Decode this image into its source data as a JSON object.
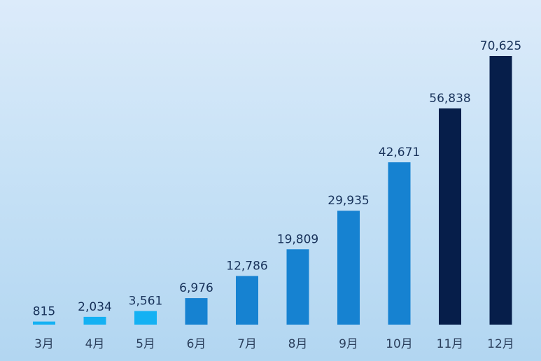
{
  "chart_data": {
    "type": "bar",
    "categories": [
      "3月",
      "4月",
      "5月",
      "6月",
      "7月",
      "8月",
      "9月",
      "10月",
      "11月",
      "12月"
    ],
    "values": [
      815,
      2034,
      3561,
      6976,
      12786,
      19809,
      29935,
      42671,
      56838,
      70625
    ],
    "value_labels": [
      "815",
      "2,034",
      "3,561",
      "6,976",
      "12,786",
      "19,809",
      "29,935",
      "42,671",
      "56,838",
      "70,625"
    ],
    "bar_colors": [
      "#14b1f3",
      "#14b1f3",
      "#14b1f3",
      "#1682d1",
      "#1682d1",
      "#1682d1",
      "#1682d1",
      "#1682d1",
      "#061e4a",
      "#061e4a"
    ],
    "ylim": [
      0,
      70625
    ],
    "grid": false,
    "legend": "none"
  }
}
